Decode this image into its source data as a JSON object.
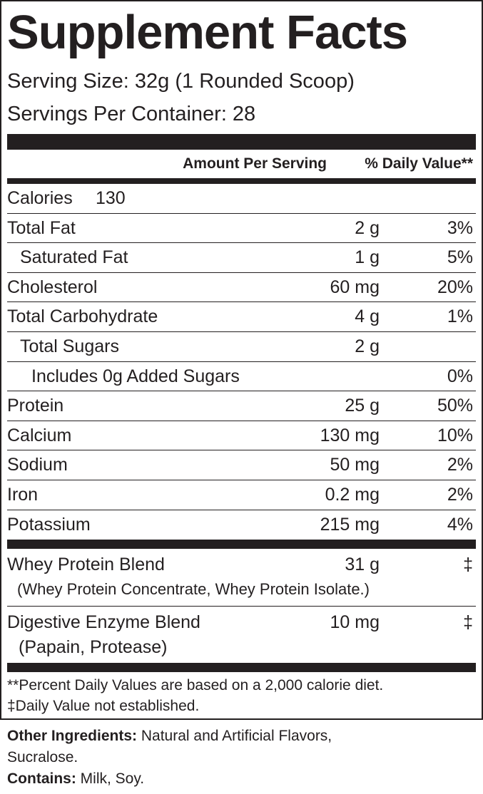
{
  "title": "Supplement Facts",
  "serving_size": "Serving Size: 32g (1 Rounded Scoop)",
  "servings_per_container": "Servings Per Container: 28",
  "header": {
    "amount": "Amount Per Serving",
    "daily_value": "% Daily Value**"
  },
  "calories": {
    "label": "Calories",
    "value": "130"
  },
  "nutrients": [
    {
      "name": "Total Fat",
      "amount": "2 g",
      "dv": "3%"
    },
    {
      "name": "Saturated Fat",
      "amount": "1 g",
      "dv": "5%"
    },
    {
      "name": "Cholesterol",
      "amount": "60 mg",
      "dv": "20%"
    },
    {
      "name": "Total Carbohydrate",
      "amount": "4 g",
      "dv": "1%"
    },
    {
      "name": "Total Sugars",
      "amount": "2 g"
    },
    {
      "name": "Includes 0g Added Sugars",
      "dv": "0%"
    },
    {
      "name": "Protein",
      "amount": "25 g",
      "dv": "50%"
    },
    {
      "name": "Calcium",
      "amount": "130 mg",
      "dv": "10%"
    },
    {
      "name": "Sodium",
      "amount": "50 mg",
      "dv": "2%"
    },
    {
      "name": "Iron",
      "amount": "0.2 mg",
      "dv": "2%"
    },
    {
      "name": "Potassium",
      "amount": "215 mg",
      "dv": "4%"
    }
  ],
  "blends": [
    {
      "name": "Whey Protein Blend",
      "amount": "31 g",
      "dv": "‡",
      "details": "(Whey Protein Concentrate, Whey Protein Isolate.)"
    },
    {
      "name": "Digestive Enzyme Blend",
      "amount": "10 mg",
      "dv": "‡",
      "details": "(Papain, Protease)"
    }
  ],
  "footnotes": [
    "**Percent Daily Values are based on a 2,000 calorie diet.",
    "‡Daily Value not established."
  ],
  "other_ingredients": {
    "label": "Other Ingredients:",
    "text": "Natural and Artificial Flavors, Sucralose."
  },
  "contains": {
    "label": "Contains:",
    "text": "Milk, Soy."
  }
}
